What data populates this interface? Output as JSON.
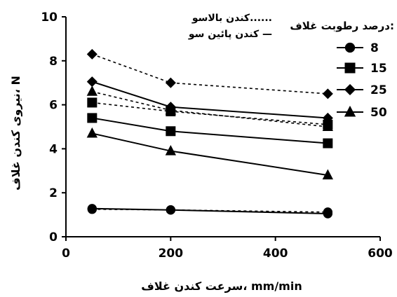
{
  "chart_data": {
    "type": "line",
    "x": [
      50,
      200,
      500
    ],
    "xlim": [
      0,
      600
    ],
    "ylim": [
      0,
      10
    ],
    "xticks": [
      0,
      200,
      400,
      600
    ],
    "yticks": [
      0,
      2,
      4,
      6,
      8,
      10
    ],
    "xlabel": "سرعت کندن غلاف، mm/min",
    "ylabel": "نیروی کندن غلاف، N",
    "legend": {
      "title": "درصد رطوبت غلاف:",
      "placement": "right"
    },
    "line_styles": {
      "upward": "کندن بالاسو......",
      "downward": "کندن پائین سو —"
    },
    "series": [
      {
        "name": "8",
        "marker": "circle",
        "upward": [
          1.25,
          1.22,
          1.12
        ],
        "downward": [
          1.28,
          1.22,
          1.05
        ]
      },
      {
        "name": "15",
        "marker": "square",
        "upward": [
          6.1,
          5.7,
          5.1
        ],
        "downward": [
          5.4,
          4.8,
          4.25
        ]
      },
      {
        "name": "25",
        "marker": "diamond",
        "upward": [
          8.3,
          7.0,
          6.5
        ],
        "downward": [
          7.05,
          5.9,
          5.4
        ]
      },
      {
        "name": "50",
        "marker": "triangle",
        "upward": [
          6.6,
          5.75,
          5.0
        ],
        "downward": [
          4.7,
          3.9,
          2.8
        ]
      }
    ]
  }
}
